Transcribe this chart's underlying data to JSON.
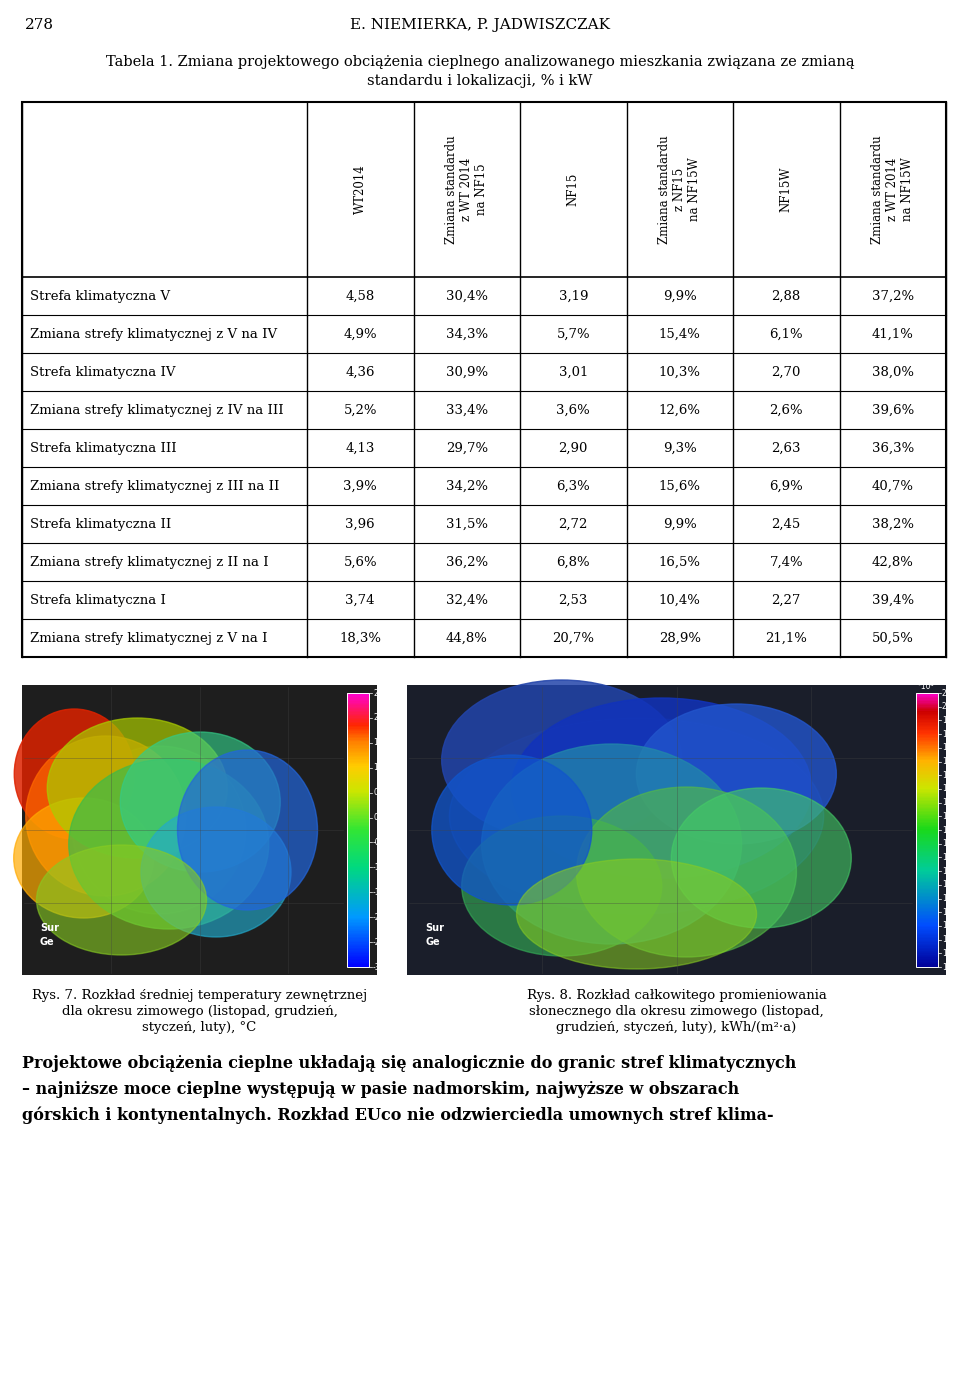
{
  "page_num": "278",
  "authors": "E. NIEMIERKA, P. JADWISZCZAK",
  "table_title_line1": "Tabela 1. Zmiana projektowego obciążenia cieplnego analizowanego mieszkania związana ze zmianą",
  "table_title_line2": "standardu i lokalizacji, % i kW",
  "col_headers": [
    "WT2014",
    "Zmiana standardu\nz WT 2014\nna NF15",
    "NF15",
    "Zmiana standardu\nz NF15\nna NF15W",
    "NF15W",
    "Zmiana standardu\nz WT 2014\nna NF15W"
  ],
  "row_labels": [
    "Strefa klimatyczna V",
    "Zmiana strefy klimatycznej z V na IV",
    "Strefa klimatyczna IV",
    "Zmiana strefy klimatycznej z IV na III",
    "Strefa klimatyczna III",
    "Zmiana strefy klimatycznej z III na II",
    "Strefa klimatyczna II",
    "Zmiana strefy klimatycznej z II na I",
    "Strefa klimatyczna I",
    "Zmiana strefy klimatycznej z V na I"
  ],
  "table_data": [
    [
      "4,58",
      "30,4%",
      "3,19",
      "9,9%",
      "2,88",
      "37,2%"
    ],
    [
      "4,9%",
      "34,3%",
      "5,7%",
      "15,4%",
      "6,1%",
      "41,1%"
    ],
    [
      "4,36",
      "30,9%",
      "3,01",
      "10,3%",
      "2,70",
      "38,0%"
    ],
    [
      "5,2%",
      "33,4%",
      "3,6%",
      "12,6%",
      "2,6%",
      "39,6%"
    ],
    [
      "4,13",
      "29,7%",
      "2,90",
      "9,3%",
      "2,63",
      "36,3%"
    ],
    [
      "3,9%",
      "34,2%",
      "6,3%",
      "15,6%",
      "6,9%",
      "40,7%"
    ],
    [
      "3,96",
      "31,5%",
      "2,72",
      "9,9%",
      "2,45",
      "38,2%"
    ],
    [
      "5,6%",
      "36,2%",
      "6,8%",
      "16,5%",
      "7,4%",
      "42,8%"
    ],
    [
      "3,74",
      "32,4%",
      "2,53",
      "10,4%",
      "2,27",
      "39,4%"
    ],
    [
      "18,3%",
      "44,8%",
      "20,7%",
      "28,9%",
      "21,1%",
      "50,5%"
    ]
  ],
  "fig7_caption_lines": [
    "Rys. 7. Rozkład średniej temperatury zewnętrznej",
    "dla okresu zimowego (listopad, grudzień,",
    "styczeń, luty), °C"
  ],
  "fig8_caption_lines": [
    "Rys. 8. Rozkład całkowitego promieniowania",
    "słonecznego dla okresu zimowego (listopad,",
    "grudzień, styczeń, luty), kWh/(m²·a)"
  ],
  "bottom_lines": [
    "Projektowe obciążenia cieplne układają się analogicznie do granic stref klimatycznych",
    "– najniższe moce cieplne występują w pasie nadmorskim, najwyższe w obszarach",
    "górskich i kontynentalnych. Rozkład EUco nie odzwierciedla umownych stref klima-"
  ],
  "bg_color": "#ffffff"
}
